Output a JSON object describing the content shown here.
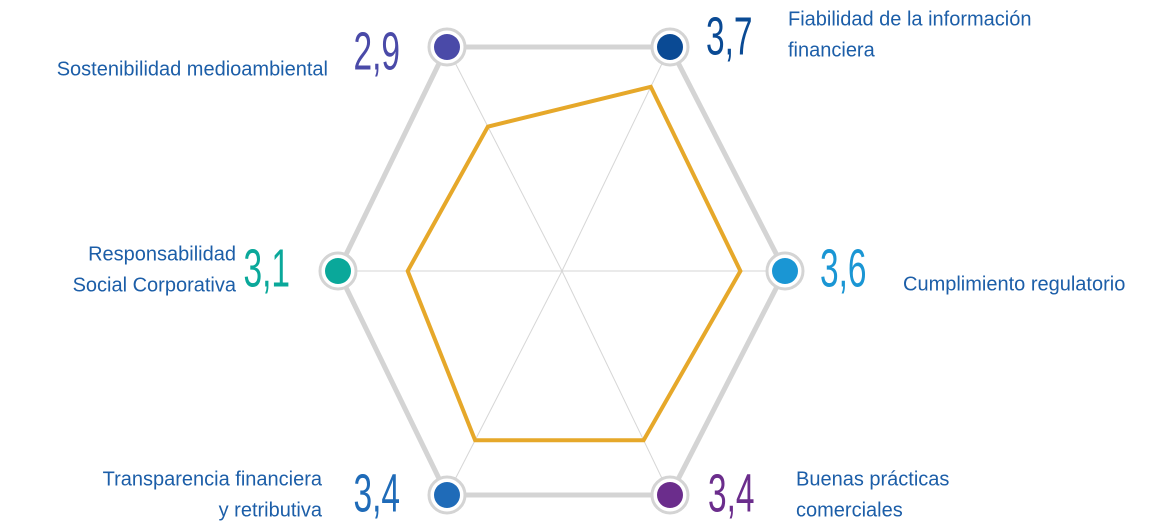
{
  "chart_data": {
    "type": "radar",
    "categories": [
      [
        "Fiabilidad de la información",
        "financiera"
      ],
      [
        "Cumplimiento regulatorio"
      ],
      [
        "Buenas prácticas",
        "comerciales"
      ],
      [
        "Transparencia financiera",
        "y retributiva"
      ],
      [
        "Responsabilidad",
        "Social Corporativa"
      ],
      [
        "Sostenibilidad medioambiental"
      ]
    ],
    "values": [
      3.7,
      3.6,
      3.4,
      3.4,
      3.1,
      2.9
    ],
    "value_labels": [
      "3,7",
      "3,6",
      "3,4",
      "3,4",
      "3,1",
      "2,9"
    ],
    "colors": [
      "#0a4a94",
      "#1a96d4",
      "#6b2d8c",
      "#1f6bb8",
      "#0aa89a",
      "#4a4aa8"
    ],
    "line_color": "#e6a82a",
    "rlim": [
      0,
      4.5
    ]
  }
}
